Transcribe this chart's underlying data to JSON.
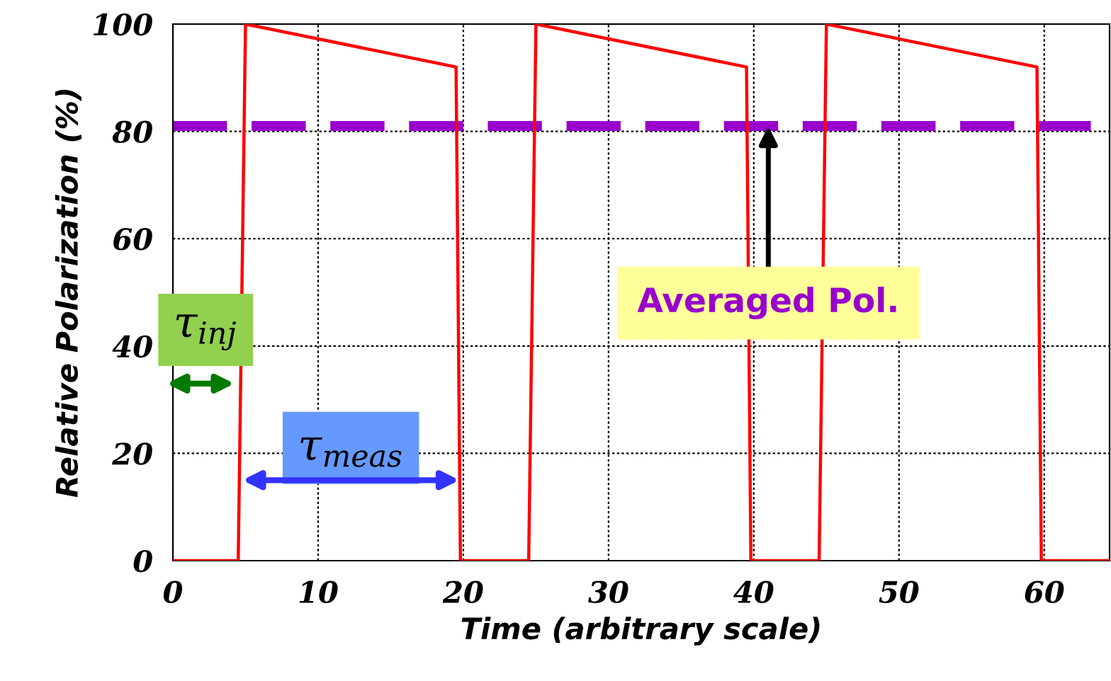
{
  "chart_data": {
    "type": "line",
    "xlabel": "Time (arbitrary scale)",
    "ylabel": "Relative Polarization (%)",
    "series": [
      {
        "color": "#ff0000",
        "x": [
          0,
          4.5,
          5,
          19.5,
          19.8,
          24.5,
          25,
          39.5,
          39.8,
          44.5,
          45,
          59.5,
          59.8,
          64.5
        ],
        "values": [
          0,
          0,
          100,
          92,
          0,
          0,
          100,
          92,
          0,
          0,
          100,
          92,
          0,
          0
        ]
      }
    ],
    "ref_lines": [
      {
        "axis": "y",
        "value": 81,
        "label": null,
        "color": "#9900cc",
        "line_style": "dashed"
      }
    ],
    "annotations": [
      {
        "text": "Averaged Pol.",
        "x": 41,
        "y": 81
      },
      "τ$_{inj}$",
      {
        "text": "τ$_{meas}$",
        "x": 20,
        "y": 15
      }
    ],
    "xlim": [
      0,
      64.5
    ],
    "ylim": [
      0,
      100
    ],
    "xticks": [
      0,
      10,
      20,
      30,
      40,
      50,
      60
    ],
    "yticks": [
      0,
      20,
      40,
      60,
      80,
      100
    ],
    "grid": true,
    "marker": "none",
    "line_style": "solid",
    "legend": false
  }
}
